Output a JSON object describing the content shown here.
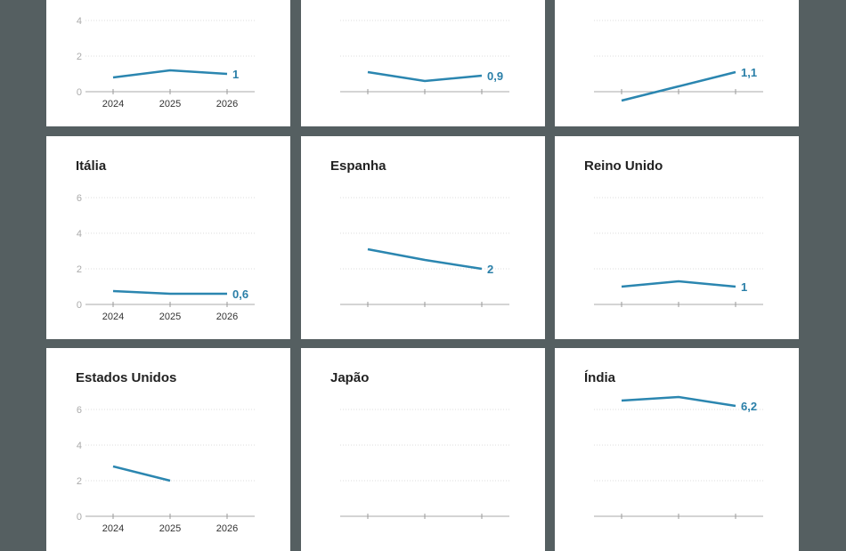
{
  "chart_data": {
    "type": "line",
    "years": [
      "2024",
      "2025",
      "2026"
    ],
    "y_ticks": [
      0,
      2,
      4,
      6
    ],
    "ylim": [
      0,
      6
    ],
    "grid": true,
    "line_color": "#2b86b0",
    "label_color": "#2a7fa8",
    "background": "#555f61",
    "panels": [
      {
        "title": "",
        "values": [
          0.8,
          1.2,
          1.0
        ],
        "end_label": "1"
      },
      {
        "title": "",
        "values": [
          1.1,
          0.6,
          0.9
        ],
        "end_label": "0,9"
      },
      {
        "title": "",
        "values": [
          -0.5,
          0.3,
          1.1
        ],
        "end_label": "1,1"
      },
      {
        "title": "Itália",
        "values": [
          0.75,
          0.6,
          0.6
        ],
        "end_label": "0,6"
      },
      {
        "title": "Espanha",
        "values": [
          3.1,
          2.5,
          2.0
        ],
        "end_label": "2"
      },
      {
        "title": "Reino Unido",
        "values": [
          1.0,
          1.3,
          1.0
        ],
        "end_label": "1"
      },
      {
        "title": "Estados Unidos",
        "values": [
          2.8,
          2.0,
          null
        ],
        "end_label": ""
      },
      {
        "title": "Japão",
        "values": [
          null,
          null,
          null
        ],
        "end_label": ""
      },
      {
        "title": "Índia",
        "values": [
          6.5,
          6.7,
          6.2
        ],
        "end_label": "6,2"
      }
    ]
  }
}
